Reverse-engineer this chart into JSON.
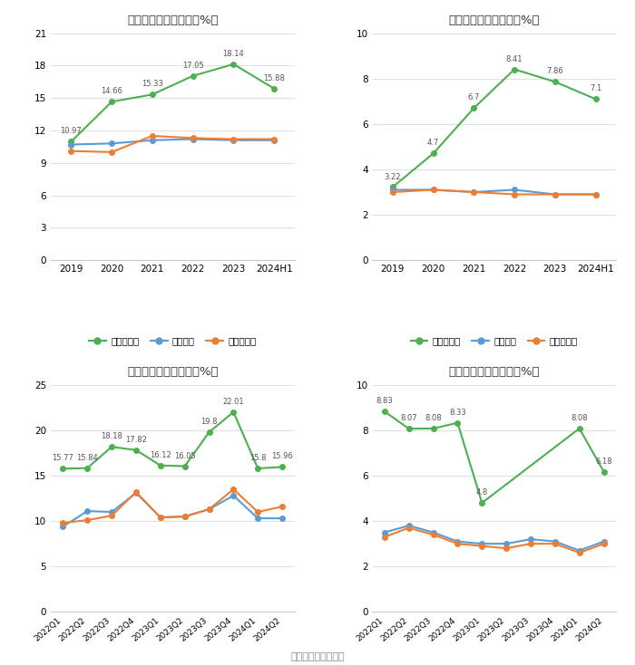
{
  "annual_gross": {
    "title": "历年毛利率变化情况（%）",
    "x_labels": [
      "2019",
      "2020",
      "2021",
      "2022",
      "2023",
      "2024H1"
    ],
    "company": [
      10.97,
      14.66,
      15.33,
      17.05,
      18.14,
      15.88
    ],
    "industry_avg": [
      10.7,
      10.8,
      11.1,
      11.2,
      11.1,
      11.1
    ],
    "industry_mid": [
      10.1,
      10.0,
      11.5,
      11.3,
      11.2,
      11.2
    ],
    "ylim": [
      0,
      21
    ],
    "yticks": [
      0,
      3,
      6,
      9,
      12,
      15,
      18,
      21
    ],
    "legend": [
      "公司毛利率",
      "行业均值",
      "行业中位数"
    ]
  },
  "annual_net": {
    "title": "历年净利率变化情况（%）",
    "x_labels": [
      "2019",
      "2020",
      "2021",
      "2022",
      "2023",
      "2024H1"
    ],
    "company": [
      3.22,
      4.7,
      6.7,
      8.41,
      7.86,
      7.1
    ],
    "industry_avg": [
      3.1,
      3.1,
      3.0,
      3.1,
      2.9,
      2.9
    ],
    "industry_mid": [
      3.0,
      3.1,
      3.0,
      2.9,
      2.9,
      2.9
    ],
    "ylim": [
      0,
      10
    ],
    "yticks": [
      0,
      2,
      4,
      6,
      8,
      10
    ],
    "legend": [
      "公司净利率",
      "行业均值",
      "行业中位数"
    ]
  },
  "quarterly_gross": {
    "title": "季度毛利率变化情况（%）",
    "x_labels": [
      "2022Q1",
      "2022Q2",
      "2022Q3",
      "2022Q4",
      "2023Q1",
      "2023Q2",
      "2023Q3",
      "2023Q4",
      "2024Q1",
      "2024Q2"
    ],
    "company": [
      15.77,
      15.84,
      18.18,
      17.82,
      16.12,
      16.05,
      19.8,
      22.01,
      15.8,
      15.96
    ],
    "industry_avg": [
      9.4,
      11.1,
      11.0,
      13.1,
      10.4,
      10.5,
      11.3,
      12.8,
      10.3,
      10.3
    ],
    "industry_mid": [
      9.8,
      10.1,
      10.6,
      13.2,
      10.4,
      10.5,
      11.3,
      13.5,
      11.0,
      11.6
    ],
    "ylim": [
      0,
      25
    ],
    "yticks": [
      0,
      5,
      10,
      15,
      20,
      25
    ],
    "legend": [
      "公司毛利率",
      "行业均值",
      "行业中位数"
    ]
  },
  "quarterly_net": {
    "title": "季度净利率变化情况（%）",
    "x_labels": [
      "2022Q1",
      "2022Q2",
      "2022Q3",
      "2022Q4",
      "2023Q1",
      "2023Q2",
      "2023Q3",
      "2023Q4",
      "2024Q1",
      "2024Q2"
    ],
    "company": [
      8.83,
      8.07,
      8.08,
      8.33,
      4.8,
      null,
      null,
      null,
      8.08,
      6.18
    ],
    "company_labels": [
      8.83,
      8.07,
      8.08,
      8.33,
      4.8,
      null,
      null,
      null,
      8.08,
      6.18
    ],
    "industry_avg": [
      3.5,
      3.8,
      3.5,
      3.1,
      3.0,
      3.0,
      3.2,
      3.1,
      2.7,
      3.1
    ],
    "industry_mid": [
      3.3,
      3.7,
      3.4,
      3.0,
      2.9,
      2.8,
      3.0,
      3.0,
      2.6,
      3.0
    ],
    "ylim": [
      0,
      10
    ],
    "yticks": [
      0,
      2,
      4,
      6,
      8,
      10
    ],
    "legend": [
      "公司净利率",
      "行业均值",
      "行业中位数"
    ]
  },
  "colors": {
    "company": "#4caf50",
    "industry_avg": "#5b9bd5",
    "industry_mid": "#ed7d31"
  },
  "source_text": "数据来源：恒生聚源",
  "bg_color": "#ffffff",
  "grid_color": "#e0e0e0"
}
